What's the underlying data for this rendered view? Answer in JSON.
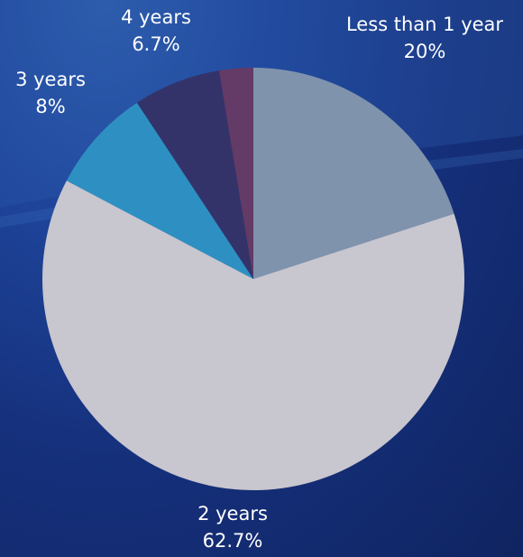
{
  "chart_data": {
    "type": "pie",
    "title": "",
    "slices": [
      {
        "label": "Less than 1 year",
        "value_text": "20%",
        "value": 20,
        "color": "#7f93ad"
      },
      {
        "label": "2 years",
        "value_text": "62.7%",
        "value": 62.7,
        "color": "#c8c6ce"
      },
      {
        "label": "3 years",
        "value_text": "8%",
        "value": 8,
        "color": "#2e90c2"
      },
      {
        "label": "4 years",
        "value_text": "6.7%",
        "value": 6.7,
        "color": "#33336a"
      },
      {
        "label": "",
        "value_text": "",
        "value": 2.6,
        "color": "#643a66"
      }
    ],
    "start_angle_deg": 0,
    "direction": "clockwise",
    "legend": "none"
  }
}
